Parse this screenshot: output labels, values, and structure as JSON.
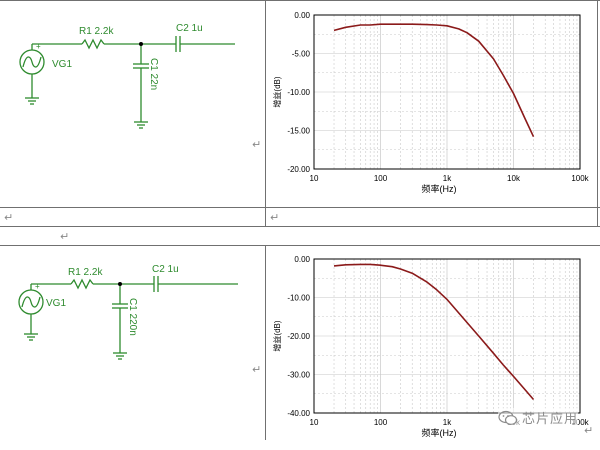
{
  "colors": {
    "grid": "#c8c8c8",
    "curve": "#8b1a1a",
    "schematic": "#2e8b2e",
    "axis": "#000000",
    "table": "#707070"
  },
  "schematic_top": {
    "r_label": "R1 2.2k",
    "c1_label": "C1 22n",
    "c2_label": "C2 1u",
    "source_label": "VG1"
  },
  "schematic_bottom": {
    "r_label": "R1 2.2k",
    "c1_label": "C1 220n",
    "c2_label": "C2 1u",
    "source_label": "VG1"
  },
  "return_mark": "↵",
  "watermark": {
    "icon": "wechat-icon",
    "text": "芯片应用"
  },
  "chart_data": [
    {
      "type": "line",
      "xscale": "log",
      "xlim": [
        10,
        100000
      ],
      "ylim": [
        -20,
        0
      ],
      "xticks": [
        "10",
        "100",
        "1k",
        "10k",
        "100k"
      ],
      "yticks": [
        "0.00",
        "-5.00",
        "-10.00",
        "-15.00",
        "-20.00"
      ],
      "xlabel": "频率(Hz)",
      "ylabel": "增益(dB)",
      "grid": true,
      "series": [
        {
          "x": [
            20,
            30,
            50,
            70,
            100,
            150,
            200,
            300,
            500,
            700,
            1000,
            1500,
            2000,
            3000,
            5000,
            7000,
            10000,
            15000,
            20000
          ],
          "y": [
            -2.0,
            -1.6,
            -1.3,
            -1.3,
            -1.2,
            -1.2,
            -1.2,
            -1.2,
            -1.25,
            -1.3,
            -1.4,
            -1.8,
            -2.3,
            -3.4,
            -5.7,
            -7.8,
            -10.2,
            -13.5,
            -15.8
          ]
        }
      ]
    },
    {
      "type": "line",
      "xscale": "log",
      "xlim": [
        10,
        100000
      ],
      "ylim": [
        -40,
        0
      ],
      "xticks": [
        "10",
        "100",
        "1k",
        "10k",
        "100k"
      ],
      "yticks": [
        "0.00",
        "-10.00",
        "-20.00",
        "-30.00",
        "-40.00"
      ],
      "xlabel": "频率(Hz)",
      "ylabel": "增益(dB)",
      "grid": true,
      "series": [
        {
          "x": [
            20,
            30,
            50,
            70,
            100,
            150,
            200,
            300,
            500,
            700,
            1000,
            2000,
            3000,
            5000,
            7000,
            10000,
            15000,
            20000
          ],
          "y": [
            -1.8,
            -1.5,
            -1.4,
            -1.4,
            -1.6,
            -2.0,
            -2.6,
            -3.7,
            -6.0,
            -8.0,
            -10.5,
            -16.5,
            -20.0,
            -24.5,
            -27.5,
            -30.5,
            -34.0,
            -36.5
          ]
        }
      ]
    }
  ]
}
